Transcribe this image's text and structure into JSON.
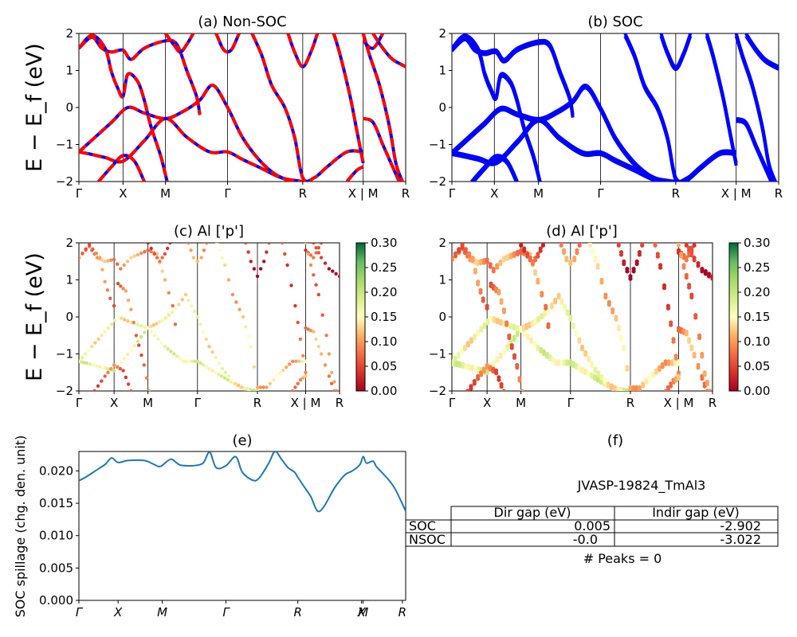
{
  "figure": {
    "ylabel_top": "E − E_f (eV)",
    "ylabel_mid": "E − E_f (eV)"
  },
  "chart_data": [
    {
      "id": "a",
      "type": "line",
      "title": "(a) Non-SOC",
      "ylim": [
        -2,
        2
      ],
      "yticks": [
        -2,
        -1,
        0,
        1,
        2
      ],
      "kpath": [
        {
          "label": "Γ",
          "pos": 0.0
        },
        {
          "label": "X",
          "pos": 0.135
        },
        {
          "label": "M",
          "pos": 0.265
        },
        {
          "label": "Γ",
          "pos": 0.455
        },
        {
          "label": "R",
          "pos": 0.685
        },
        {
          "label": "X | M",
          "pos": 0.87
        },
        {
          "label": "R",
          "pos": 1.0
        }
      ],
      "series_style": {
        "up": "#0000ff",
        "down": "#ff0000",
        "down_dashed": true
      },
      "bands": [
        [
          [
            0,
            -1.2
          ],
          [
            0.03,
            -1.25
          ],
          [
            0.08,
            -1.35
          ],
          [
            0.135,
            -1.45
          ],
          [
            0.2,
            -0.9
          ],
          [
            0.265,
            -0.3
          ],
          [
            0.33,
            -0.8
          ],
          [
            0.4,
            -1.2
          ],
          [
            0.455,
            -1.2
          ],
          [
            0.5,
            -1.4
          ],
          [
            0.56,
            -1.65
          ],
          [
            0.62,
            -1.9
          ],
          [
            0.685,
            -2.0
          ]
        ],
        [
          [
            0,
            -1.2
          ],
          [
            0.05,
            -0.8
          ],
          [
            0.1,
            -0.4
          ],
          [
            0.15,
            0.0
          ],
          [
            0.2,
            -0.15
          ],
          [
            0.265,
            -0.3
          ],
          [
            0.32,
            -0.1
          ],
          [
            0.37,
            0.2
          ],
          [
            0.41,
            0.6
          ],
          [
            0.455,
            0.0
          ],
          [
            0.5,
            -0.8
          ],
          [
            0.55,
            -1.4
          ],
          [
            0.6,
            -1.8
          ],
          [
            0.65,
            -2.0
          ]
        ],
        [
          [
            0,
            1.6
          ],
          [
            0.04,
            1.9
          ],
          [
            0.07,
            1.6
          ],
          [
            0.1,
            1.5
          ],
          [
            0.135,
            1.55
          ],
          [
            0.16,
            1.3
          ],
          [
            0.2,
            1.6
          ],
          [
            0.265,
            1.8
          ],
          [
            0.3,
            1.7
          ],
          [
            0.33,
            1.0
          ],
          [
            0.36,
            0.3
          ],
          [
            0.37,
            -0.2
          ]
        ],
        [
          [
            0,
            1.6
          ],
          [
            0.04,
            1.95
          ],
          [
            0.08,
            1.6
          ],
          [
            0.1,
            0.95
          ],
          [
            0.12,
            0.5
          ],
          [
            0.135,
            0.3
          ],
          [
            0.15,
            0.9
          ],
          [
            0.18,
            0.7
          ],
          [
            0.2,
            0.2
          ],
          [
            0.22,
            -0.5
          ],
          [
            0.25,
            -1.3
          ],
          [
            0.27,
            -2.0
          ]
        ],
        [
          [
            0.06,
            -2.0
          ],
          [
            0.1,
            -1.6
          ],
          [
            0.135,
            -1.3
          ],
          [
            0.17,
            -1.45
          ],
          [
            0.2,
            -2.0
          ]
        ],
        [
          [
            0.265,
            2.0
          ],
          [
            0.29,
            1.7
          ],
          [
            0.31,
            1.5
          ],
          [
            0.33,
            1.7
          ],
          [
            0.35,
            2.0
          ]
        ],
        [
          [
            0.42,
            2.0
          ],
          [
            0.44,
            1.6
          ],
          [
            0.455,
            1.5
          ],
          [
            0.47,
            1.6
          ],
          [
            0.49,
            2.0
          ]
        ],
        [
          [
            0.53,
            2.0
          ],
          [
            0.56,
            1.4
          ],
          [
            0.59,
            0.6
          ],
          [
            0.63,
            0.0
          ],
          [
            0.66,
            -0.8
          ],
          [
            0.685,
            -1.9
          ],
          [
            0.72,
            -1.9
          ],
          [
            0.76,
            -1.6
          ],
          [
            0.82,
            -1.2
          ],
          [
            0.87,
            -1.2
          ]
        ],
        [
          [
            0.64,
            2.0
          ],
          [
            0.66,
            1.5
          ],
          [
            0.685,
            1.1
          ],
          [
            0.71,
            1.5
          ],
          [
            0.73,
            2.0
          ]
        ],
        [
          [
            0.78,
            2.0
          ],
          [
            0.8,
            1.4
          ],
          [
            0.83,
            0.3
          ],
          [
            0.85,
            -0.6
          ],
          [
            0.87,
            -1.5
          ]
        ],
        [
          [
            0.82,
            -2.0
          ],
          [
            0.85,
            -1.7
          ],
          [
            0.87,
            -1.6
          ]
        ],
        [
          [
            0.87,
            -0.3
          ],
          [
            0.9,
            -0.4
          ],
          [
            0.93,
            -1.0
          ],
          [
            0.96,
            -1.6
          ],
          [
            0.98,
            -2.0
          ]
        ],
        [
          [
            0.87,
            1.8
          ],
          [
            0.9,
            1.6
          ],
          [
            0.93,
            2.0
          ]
        ],
        [
          [
            0.9,
            2.0
          ],
          [
            0.93,
            1.6
          ],
          [
            0.96,
            1.3
          ],
          [
            1.0,
            1.1
          ]
        ],
        [
          [
            0.87,
            2.0
          ],
          [
            0.89,
            1.4
          ],
          [
            0.92,
            0.6
          ],
          [
            0.95,
            -0.5
          ],
          [
            0.97,
            -1.5
          ],
          [
            0.99,
            -2.0
          ]
        ]
      ]
    },
    {
      "id": "b",
      "type": "line",
      "title": "(b) SOC",
      "ylim": [
        -2,
        2
      ],
      "yticks": [
        -2,
        -1,
        0,
        1,
        2
      ],
      "kpath": [
        {
          "label": "Γ",
          "pos": 0.0
        },
        {
          "label": "X",
          "pos": 0.13
        },
        {
          "label": "M",
          "pos": 0.265
        },
        {
          "label": "Γ",
          "pos": 0.455
        },
        {
          "label": "R",
          "pos": 0.685
        },
        {
          "label": "X | M",
          "pos": 0.87
        },
        {
          "label": "R",
          "pos": 1.0
        }
      ],
      "series_style": {
        "up": "#0000ff",
        "doubled": true
      },
      "bands": [
        [
          [
            0,
            -1.2
          ],
          [
            0.03,
            -1.25
          ],
          [
            0.08,
            -1.35
          ],
          [
            0.135,
            -1.45
          ],
          [
            0.2,
            -0.9
          ],
          [
            0.265,
            -0.3
          ],
          [
            0.33,
            -0.8
          ],
          [
            0.4,
            -1.2
          ],
          [
            0.455,
            -1.2
          ],
          [
            0.5,
            -1.4
          ],
          [
            0.56,
            -1.65
          ],
          [
            0.62,
            -1.9
          ],
          [
            0.685,
            -2.0
          ]
        ],
        [
          [
            0,
            -1.2
          ],
          [
            0.05,
            -0.8
          ],
          [
            0.1,
            -0.4
          ],
          [
            0.15,
            0.0
          ],
          [
            0.2,
            -0.15
          ],
          [
            0.265,
            -0.3
          ],
          [
            0.32,
            -0.1
          ],
          [
            0.37,
            0.2
          ],
          [
            0.41,
            0.6
          ],
          [
            0.455,
            0.0
          ],
          [
            0.5,
            -0.8
          ],
          [
            0.55,
            -1.4
          ],
          [
            0.6,
            -1.8
          ],
          [
            0.65,
            -2.0
          ]
        ],
        [
          [
            0,
            1.6
          ],
          [
            0.04,
            1.9
          ],
          [
            0.07,
            1.6
          ],
          [
            0.1,
            1.5
          ],
          [
            0.135,
            1.55
          ],
          [
            0.16,
            1.3
          ],
          [
            0.2,
            1.6
          ],
          [
            0.265,
            1.8
          ],
          [
            0.3,
            1.7
          ],
          [
            0.33,
            1.0
          ],
          [
            0.36,
            0.3
          ],
          [
            0.37,
            -0.2
          ]
        ],
        [
          [
            0,
            1.6
          ],
          [
            0.04,
            1.95
          ],
          [
            0.08,
            1.6
          ],
          [
            0.1,
            0.95
          ],
          [
            0.12,
            0.5
          ],
          [
            0.135,
            0.3
          ],
          [
            0.15,
            0.9
          ],
          [
            0.18,
            0.7
          ],
          [
            0.2,
            0.2
          ],
          [
            0.22,
            -0.5
          ],
          [
            0.25,
            -1.3
          ],
          [
            0.27,
            -2.0
          ]
        ],
        [
          [
            0.06,
            -2.0
          ],
          [
            0.1,
            -1.6
          ],
          [
            0.135,
            -1.3
          ],
          [
            0.17,
            -1.45
          ],
          [
            0.2,
            -2.0
          ]
        ],
        [
          [
            0.53,
            2.0
          ],
          [
            0.56,
            1.4
          ],
          [
            0.59,
            0.6
          ],
          [
            0.63,
            0.0
          ],
          [
            0.66,
            -0.8
          ],
          [
            0.685,
            -1.9
          ],
          [
            0.72,
            -1.9
          ],
          [
            0.76,
            -1.6
          ],
          [
            0.82,
            -1.2
          ],
          [
            0.87,
            -1.2
          ]
        ],
        [
          [
            0.64,
            2.0
          ],
          [
            0.66,
            1.5
          ],
          [
            0.685,
            1.1
          ],
          [
            0.71,
            1.5
          ],
          [
            0.73,
            2.0
          ]
        ],
        [
          [
            0.78,
            2.0
          ],
          [
            0.8,
            1.4
          ],
          [
            0.83,
            0.3
          ],
          [
            0.85,
            -0.6
          ],
          [
            0.87,
            -1.5
          ]
        ],
        [
          [
            0.87,
            -0.3
          ],
          [
            0.9,
            -0.4
          ],
          [
            0.93,
            -1.0
          ],
          [
            0.96,
            -1.6
          ],
          [
            0.98,
            -2.0
          ]
        ],
        [
          [
            0.9,
            2.0
          ],
          [
            0.93,
            1.6
          ],
          [
            0.96,
            1.3
          ],
          [
            1.0,
            1.1
          ]
        ],
        [
          [
            0.87,
            2.0
          ],
          [
            0.89,
            1.4
          ],
          [
            0.92,
            0.6
          ],
          [
            0.95,
            -0.5
          ],
          [
            0.97,
            -1.5
          ],
          [
            0.99,
            -2.0
          ]
        ]
      ]
    },
    {
      "id": "c",
      "type": "scatter",
      "title": "(c)  Al ['p']",
      "ylim": [
        -2,
        2
      ],
      "yticks": [
        -2,
        -1,
        0,
        1,
        2
      ],
      "kpath": [
        {
          "label": "Γ",
          "pos": 0.0
        },
        {
          "label": "X",
          "pos": 0.135
        },
        {
          "label": "M",
          "pos": 0.265
        },
        {
          "label": "Γ",
          "pos": 0.455
        },
        {
          "label": "R",
          "pos": 0.685
        },
        {
          "label": "X | M",
          "pos": 0.87
        },
        {
          "label": "R",
          "pos": 1.0
        }
      ],
      "colorbar": {
        "min": 0.0,
        "max": 0.3,
        "ticks": [
          "0.00",
          "0.05",
          "0.10",
          "0.15",
          "0.20",
          "0.25",
          "0.30"
        ],
        "cmap": "RdYlGn"
      },
      "band_weights": [
        0.17,
        0.15,
        0.1,
        0.08,
        0.07,
        0.05,
        0.09,
        0.12,
        0.02,
        0.06,
        0.1,
        0.1,
        0.05,
        0.03,
        0.08
      ]
    },
    {
      "id": "d",
      "type": "scatter",
      "title": "(d) Al ['p']",
      "ylim": [
        -2,
        2
      ],
      "yticks": [
        -2,
        -1,
        0,
        1,
        2
      ],
      "kpath": [
        {
          "label": "Γ",
          "pos": 0.0
        },
        {
          "label": "X",
          "pos": 0.135
        },
        {
          "label": "M",
          "pos": 0.265
        },
        {
          "label": "Γ",
          "pos": 0.455
        },
        {
          "label": "R",
          "pos": 0.685
        },
        {
          "label": "X | M",
          "pos": 0.87
        },
        {
          "label": "R",
          "pos": 1.0
        }
      ],
      "colorbar": {
        "min": 0.0,
        "max": 0.3,
        "ticks": [
          "0.00",
          "0.05",
          "0.10",
          "0.15",
          "0.20",
          "0.25",
          "0.30"
        ],
        "cmap": "RdYlGn"
      },
      "band_weights": [
        0.17,
        0.15,
        0.1,
        0.08,
        0.07,
        0.05,
        0.09,
        0.12,
        0.02,
        0.06,
        0.1,
        0.1,
        0.05,
        0.03,
        0.08
      ]
    },
    {
      "id": "e",
      "type": "line",
      "title": "(e)",
      "ylabel": "SOC spillage (chg. den. unit)",
      "ylim": [
        0,
        0.023
      ],
      "yticks": [
        "0.000",
        "0.005",
        "0.010",
        "0.015",
        "0.020"
      ],
      "ytick_values": [
        0,
        0.005,
        0.01,
        0.015,
        0.02
      ],
      "color": "#1f77b4",
      "kpath": [
        {
          "label": "Γ",
          "pos": 0.0
        },
        {
          "label": "X",
          "pos": 0.12
        },
        {
          "label": "M",
          "pos": 0.255
        },
        {
          "label": "Γ",
          "pos": 0.45
        },
        {
          "label": "R",
          "pos": 0.67
        },
        {
          "label": "X",
          "pos": 0.865
        },
        {
          "label": "M",
          "pos": 0.87
        },
        {
          "label": "R",
          "pos": 0.99
        }
      ],
      "x": [
        0,
        0.02,
        0.05,
        0.08,
        0.1,
        0.12,
        0.15,
        0.2,
        0.23,
        0.25,
        0.28,
        0.3,
        0.31,
        0.33,
        0.35,
        0.38,
        0.4,
        0.42,
        0.45,
        0.48,
        0.5,
        0.53,
        0.55,
        0.58,
        0.6,
        0.62,
        0.64,
        0.66,
        0.67,
        0.69,
        0.71,
        0.73,
        0.75,
        0.78,
        0.8,
        0.81,
        0.82,
        0.84,
        0.86,
        0.87,
        0.88,
        0.9,
        0.91,
        0.93,
        0.95,
        0.97,
        1.0
      ],
      "y": [
        0.0185,
        0.019,
        0.02,
        0.021,
        0.022,
        0.0213,
        0.0216,
        0.0216,
        0.021,
        0.0207,
        0.0218,
        0.0212,
        0.0209,
        0.0208,
        0.0208,
        0.0212,
        0.0229,
        0.0205,
        0.0208,
        0.0222,
        0.0198,
        0.0186,
        0.0188,
        0.0211,
        0.023,
        0.0218,
        0.0205,
        0.0198,
        0.019,
        0.0175,
        0.016,
        0.0138,
        0.0145,
        0.0172,
        0.0186,
        0.0192,
        0.0196,
        0.0201,
        0.021,
        0.0222,
        0.0212,
        0.0215,
        0.0207,
        0.0196,
        0.0185,
        0.017,
        0.0138
      ]
    },
    {
      "id": "f",
      "type": "table",
      "title": "(f)",
      "caption": "JVASP-19824_TmAl3",
      "columns": [
        "Dir gap (eV)",
        "Indir gap (eV)"
      ],
      "rows": [
        {
          "label": "SOC",
          "values": [
            "0.005",
            "-2.902"
          ]
        },
        {
          "label": "NSOC",
          "values": [
            "-0.0",
            "-3.022"
          ]
        }
      ],
      "footer": "# Peaks = 0"
    }
  ]
}
